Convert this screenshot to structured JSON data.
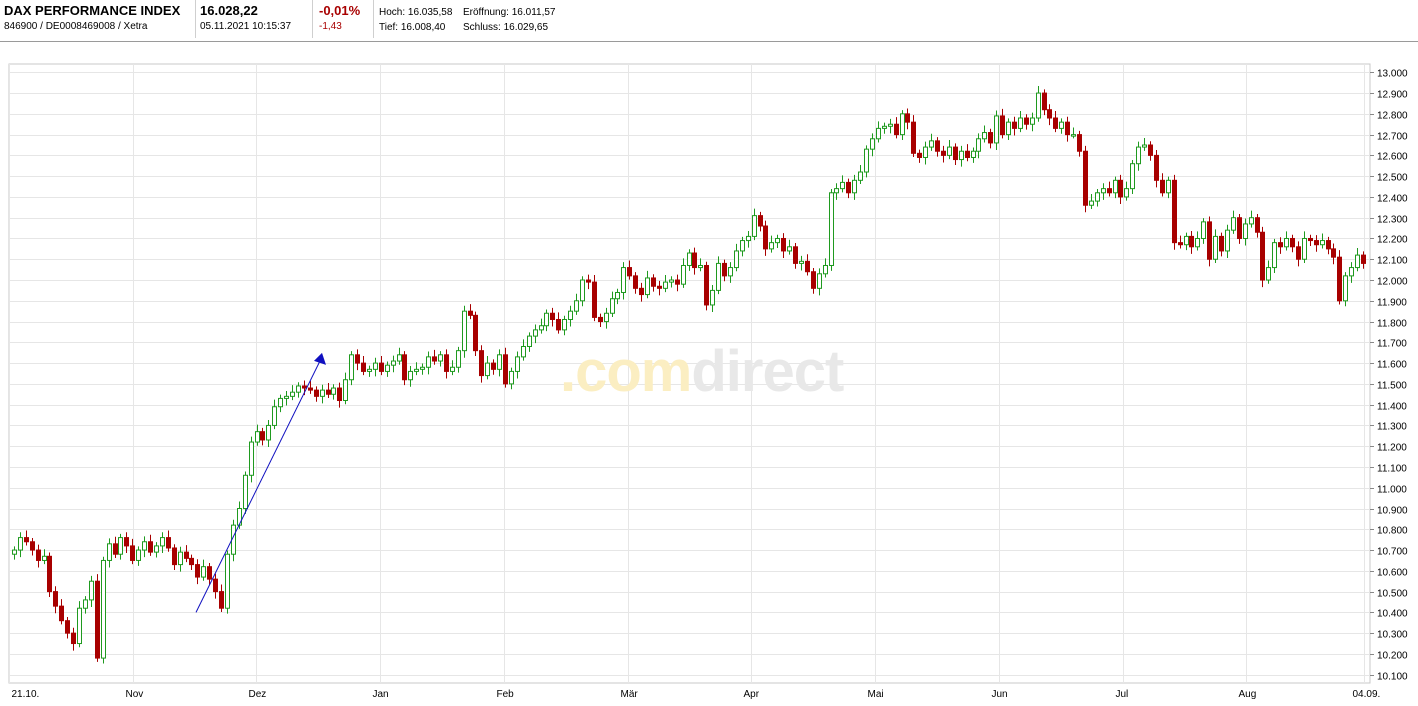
{
  "header": {
    "name": "DAX PERFORMANCE INDEX",
    "ids": "846900 / DE0008469008 / Xetra",
    "price": "16.028,22",
    "datetime": "05.11.2021 10:15:37",
    "change_pct": "-0,01%",
    "change_abs": "-1,43",
    "high": "Hoch: 16.035,58",
    "open": "Eröffnung: 16.011,57",
    "low": "Tief: 16.008,40",
    "close": "Schluss: 16.029,65"
  },
  "watermark": {
    "part1": ".com",
    "part2": "direct"
  },
  "colors": {
    "up": "#1f9a1f",
    "down": "#a80000",
    "trendline": "#1010c0",
    "grid": "#e6e6e6"
  },
  "chart_data": {
    "type": "candlestick",
    "x_labels": [
      "21.10.",
      "Nov",
      "Dez",
      "Jan",
      "Feb",
      "Mär",
      "Apr",
      "Mai",
      "Jun",
      "Jul",
      "Aug",
      "04.09."
    ],
    "y_ticks": [
      10100,
      10200,
      10300,
      10400,
      10500,
      10600,
      10700,
      10800,
      10900,
      11000,
      11100,
      11200,
      11300,
      11400,
      11500,
      11600,
      11700,
      11800,
      11900,
      12000,
      12100,
      12200,
      12300,
      12400,
      12500,
      12600,
      12700,
      12800,
      12900,
      13000
    ],
    "y_tick_labels": [
      "10.100",
      "10.200",
      "10.300",
      "10.400",
      "10.500",
      "10.600",
      "10.700",
      "10.800",
      "10.900",
      "11.000",
      "11.100",
      "11.200",
      "11.300",
      "11.400",
      "11.500",
      "11.600",
      "11.700",
      "11.800",
      "11.900",
      "12.000",
      "12.100",
      "12.200",
      "12.300",
      "12.400",
      "12.500",
      "12.600",
      "12.700",
      "12.800",
      "12.900",
      "13.000"
    ],
    "ylim": [
      10060,
      13040
    ],
    "ohlc_closes": [
      10700,
      10760,
      10740,
      10700,
      10650,
      10670,
      10500,
      10430,
      10360,
      10300,
      10250,
      10420,
      10460,
      10550,
      10180,
      10650,
      10730,
      10680,
      10760,
      10720,
      10650,
      10700,
      10740,
      10690,
      10720,
      10760,
      10710,
      10630,
      10690,
      10660,
      10630,
      10570,
      10620,
      10560,
      10500,
      10420,
      10680,
      10820,
      10900,
      11060,
      11220,
      11270,
      11230,
      11300,
      11390,
      11430,
      11440,
      11460,
      11490,
      11480,
      11470,
      11440,
      11470,
      11450,
      11480,
      11420,
      11520,
      11640,
      11600,
      11560,
      11570,
      11600,
      11560,
      11590,
      11610,
      11640,
      11520,
      11560,
      11570,
      11580,
      11630,
      11610,
      11640,
      11560,
      11580,
      11660,
      11850,
      11830,
      11660,
      11540,
      11600,
      11570,
      11640,
      11500,
      11560,
      11630,
      11680,
      11730,
      11760,
      11780,
      11840,
      11810,
      11760,
      11810,
      11850,
      11900,
      12000,
      11990,
      11820,
      11800,
      11840,
      11910,
      11940,
      12060,
      12020,
      11960,
      11930,
      12010,
      11970,
      11960,
      11990,
      12000,
      11980,
      12070,
      12130,
      12060,
      12070,
      11880,
      11950,
      12080,
      12020,
      12060,
      12140,
      12190,
      12210,
      12310,
      12260,
      12150,
      12180,
      12200,
      12140,
      12160,
      12080,
      12090,
      12040,
      11960,
      12030,
      12070,
      12420,
      12440,
      12470,
      12420,
      12480,
      12520,
      12630,
      12680,
      12730,
      12740,
      12750,
      12700,
      12800,
      12760,
      12610,
      12590,
      12640,
      12670,
      12620,
      12600,
      12640,
      12580,
      12620,
      12590,
      12620,
      12680,
      12710,
      12660,
      12790,
      12700,
      12760,
      12730,
      12780,
      12750,
      12780,
      12900,
      12820,
      12780,
      12730,
      12760,
      12700,
      12700,
      12620,
      12360,
      12380,
      12420,
      12440,
      12420,
      12480,
      12400,
      12440,
      12560,
      12640,
      12650,
      12600,
      12480,
      12420,
      12480,
      12180,
      12170,
      12210,
      12160,
      12200,
      12280,
      12100,
      12210,
      12140,
      12240,
      12300,
      12200,
      12270,
      12300,
      12230,
      12000,
      12060,
      12180,
      12160,
      12200,
      12160,
      12100,
      12200,
      12190,
      12170,
      12190,
      12150,
      12110,
      11900,
      12020,
      12060,
      12120,
      12080
    ]
  }
}
